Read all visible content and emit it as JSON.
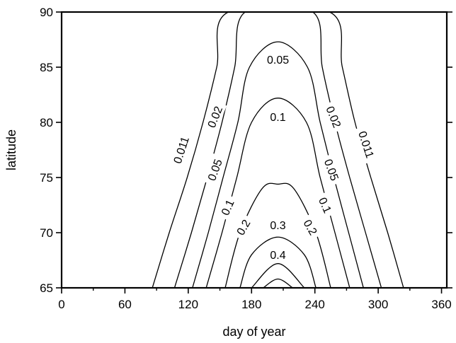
{
  "chart_data": {
    "type": "contour",
    "title": "",
    "xlabel": "day of year",
    "ylabel": "latitude",
    "xlim": [
      0,
      365
    ],
    "ylim": [
      65,
      90
    ],
    "x_ticks": [
      0,
      60,
      120,
      180,
      240,
      300,
      360
    ],
    "x_minor_ticks": [
      30,
      90,
      150,
      210,
      270,
      330
    ],
    "y_ticks": [
      65,
      70,
      75,
      80,
      85,
      90
    ],
    "grid": false,
    "levels": [
      {
        "value": 0.011,
        "label": "0.011",
        "peak_day": 205,
        "left_x": [
          [
            65,
            86
          ],
          [
            70,
            102
          ],
          [
            75,
            119
          ],
          [
            80,
            134
          ],
          [
            85,
            147
          ],
          [
            90,
            158
          ]
        ],
        "right_x": [
          [
            65,
            324
          ],
          [
            70,
            309
          ],
          [
            75,
            293
          ],
          [
            80,
            278
          ],
          [
            85,
            266
          ],
          [
            90,
            254
          ]
        ]
      },
      {
        "value": 0.02,
        "label": "0.02",
        "peak_day": 205,
        "left_x": [
          [
            65,
            107
          ],
          [
            70,
            123
          ],
          [
            75,
            138
          ],
          [
            80,
            152
          ],
          [
            85,
            164
          ],
          [
            90,
            174
          ]
        ],
        "right_x": [
          [
            65,
            303
          ],
          [
            70,
            288
          ],
          [
            75,
            273
          ],
          [
            80,
            259
          ],
          [
            85,
            247
          ],
          [
            90,
            238
          ]
        ]
      },
      {
        "value": 0.05,
        "label": "0.05",
        "peak_day": 205,
        "left_x": [
          [
            65,
            124
          ],
          [
            70,
            139
          ],
          [
            75,
            153
          ],
          [
            80,
            167
          ],
          [
            85,
            178
          ]
        ],
        "right_x": [
          [
            65,
            286
          ],
          [
            70,
            272
          ],
          [
            75,
            258
          ],
          [
            80,
            245
          ],
          [
            85,
            233
          ]
        ],
        "peak_lat": 87.3
      },
      {
        "value": 0.1,
        "label": "0.1",
        "peak_day": 205,
        "left_x": [
          [
            65,
            137
          ],
          [
            70,
            152
          ],
          [
            75,
            166
          ],
          [
            80,
            180
          ]
        ],
        "right_x": [
          [
            65,
            273
          ],
          [
            70,
            259
          ],
          [
            75,
            245
          ],
          [
            80,
            232
          ]
        ],
        "peak_lat": 82.2
      },
      {
        "value": 0.2,
        "label": "0.2",
        "peak_day": 205,
        "left_x": [
          [
            65,
            155
          ],
          [
            70,
            169
          ],
          [
            74,
            190
          ]
        ],
        "right_x": [
          [
            65,
            255
          ],
          [
            70,
            241
          ],
          [
            74,
            220
          ]
        ],
        "peak_lat": 74.4
      },
      {
        "value": 0.3,
        "label": "0.3",
        "peak_day": 205,
        "left_x": [
          [
            65,
            169
          ],
          [
            68,
            180
          ]
        ],
        "right_x": [
          [
            65,
            241
          ],
          [
            68,
            230
          ]
        ],
        "peak_lat": 69.6
      },
      {
        "value": 0.4,
        "label": "0.4",
        "peak_day": 205,
        "left_x": [
          [
            65,
            180
          ]
        ],
        "right_x": [
          [
            65,
            230
          ]
        ],
        "peak_lat": 67.2
      },
      {
        "value": 0.5,
        "label": "",
        "peak_day": 205,
        "left_x": [
          [
            65,
            191
          ]
        ],
        "right_x": [
          [
            65,
            219
          ]
        ],
        "peak_lat": 65.8
      }
    ],
    "labels": [
      {
        "text": "0.011",
        "day": 113,
        "lat": 77.5,
        "angle": -72
      },
      {
        "text": "0.011",
        "day": 289,
        "lat": 78.0,
        "angle": 72
      },
      {
        "text": "0.02",
        "day": 145,
        "lat": 80.5,
        "angle": -68
      },
      {
        "text": "0.02",
        "day": 258,
        "lat": 80.5,
        "angle": 68
      },
      {
        "text": "0.05",
        "day": 145,
        "lat": 75.7,
        "angle": -70
      },
      {
        "text": "0.05",
        "day": 256,
        "lat": 75.7,
        "angle": 70
      },
      {
        "text": "0.05",
        "day": 205,
        "lat": 85.7,
        "angle": 0
      },
      {
        "text": "0.1",
        "day": 157,
        "lat": 72.3,
        "angle": -66
      },
      {
        "text": "0.1",
        "day": 250,
        "lat": 72.5,
        "angle": 66
      },
      {
        "text": "0.1",
        "day": 205,
        "lat": 80.5,
        "angle": 0
      },
      {
        "text": "0.2",
        "day": 172,
        "lat": 70.5,
        "angle": -60
      },
      {
        "text": "0.2",
        "day": 236,
        "lat": 70.5,
        "angle": 60
      },
      {
        "text": "0.3",
        "day": 205,
        "lat": 70.7,
        "angle": 0
      },
      {
        "text": "0.4",
        "day": 205,
        "lat": 68.0,
        "angle": 0
      }
    ]
  }
}
